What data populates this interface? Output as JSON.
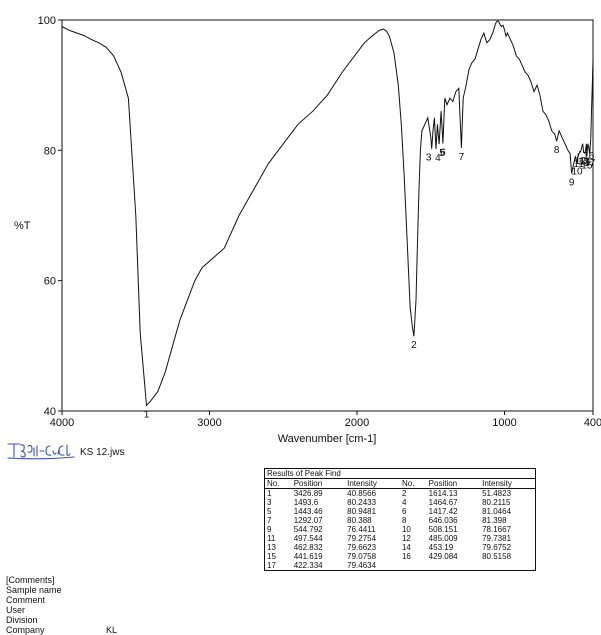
{
  "chart_data": {
    "type": "line",
    "xlabel": "Wavenumber [cm-1]",
    "ylabel": "%T",
    "xlim": [
      4000,
      400
    ],
    "ylim": [
      40,
      100
    ],
    "x_ticks": [
      4000,
      3000,
      2000,
      1000,
      400
    ],
    "y_ticks": [
      40,
      60,
      80,
      100
    ],
    "grid": false,
    "series": [
      {
        "x": [
          4000,
          3950,
          3900,
          3850,
          3800,
          3750,
          3700,
          3650,
          3600,
          3550,
          3500,
          3470,
          3426.89,
          3400,
          3350,
          3300,
          3250,
          3200,
          3150,
          3100,
          3050,
          3000,
          2950,
          2900,
          2800,
          2700,
          2600,
          2500,
          2400,
          2300,
          2200,
          2100,
          2000,
          1950,
          1900,
          1850,
          1820,
          1800,
          1780,
          1750,
          1720,
          1700,
          1680,
          1660,
          1640,
          1625,
          1614.13,
          1600,
          1590,
          1580,
          1570,
          1560,
          1540,
          1520,
          1500,
          1493.6,
          1485,
          1475,
          1464.67,
          1455,
          1443.46,
          1430,
          1417.42,
          1405,
          1390,
          1370,
          1350,
          1330,
          1310,
          1292.07,
          1280,
          1260,
          1240,
          1220,
          1200,
          1180,
          1160,
          1140,
          1120,
          1100,
          1080,
          1060,
          1050,
          1040,
          1030,
          1020,
          1010,
          1000,
          990,
          980,
          970,
          960,
          950,
          940,
          920,
          900,
          880,
          860,
          840,
          820,
          800,
          780,
          760,
          740,
          720,
          700,
          680,
          660,
          646.036,
          630,
          610,
          590,
          570,
          555,
          544.792,
          530,
          520,
          508.151,
          500,
          497.544,
          490,
          485.009,
          470,
          462.832,
          453.19,
          445,
          441.619,
          435,
          429.084,
          422.334,
          415,
          410,
          405,
          400
        ],
        "y": [
          99,
          98.4,
          98,
          97.6,
          97,
          96.5,
          95.8,
          94.5,
          92,
          88,
          70,
          52,
          40.86,
          41.5,
          43,
          46,
          50,
          54,
          57,
          60,
          62,
          63,
          64,
          65,
          70,
          74,
          78,
          81,
          84,
          86,
          88.5,
          92,
          95,
          96.5,
          97.5,
          98.4,
          98.6,
          98.3,
          97.5,
          95,
          90,
          84,
          76,
          66,
          56,
          53,
          51.48,
          57,
          66,
          74,
          80,
          83,
          84,
          85,
          82,
          80.24,
          83,
          85,
          80.21,
          84,
          80.95,
          86,
          81.05,
          88,
          87,
          88,
          87.5,
          89,
          89.5,
          80.39,
          88,
          90,
          92.5,
          93.5,
          94,
          95.5,
          97,
          98,
          96.5,
          97,
          98,
          99.5,
          99.8,
          99.8,
          99.3,
          99,
          99.2,
          98.5,
          97.5,
          98,
          97.5,
          97,
          96.5,
          96,
          94.5,
          94,
          93,
          92,
          91.5,
          90.5,
          89,
          90,
          88.5,
          86,
          85.5,
          84.5,
          83,
          82.5,
          81.4,
          83,
          82,
          81,
          80,
          79.5,
          76.44,
          78,
          79,
          78.17,
          79.5,
          79.28,
          79.8,
          79.74,
          81,
          79.66,
          79.68,
          81,
          79.08,
          81,
          80.52,
          79.46,
          82,
          86,
          90,
          94
        ]
      }
    ],
    "peaks": [
      {
        "n": "1",
        "x": 3426.89,
        "y": 40.8566
      },
      {
        "n": "2",
        "x": 1614.13,
        "y": 51.4823
      },
      {
        "n": "3",
        "x": 1493.6,
        "y": 80.2433
      },
      {
        "n": "4",
        "x": 1464.67,
        "y": 80.2115
      },
      {
        "n": "5",
        "x": 1443.46,
        "y": 80.9481
      },
      {
        "n": "6",
        "x": 1417.42,
        "y": 81.0464
      },
      {
        "n": "7",
        "x": 1292.07,
        "y": 80.388
      },
      {
        "n": "8",
        "x": 646.036,
        "y": 81.398
      },
      {
        "n": "9",
        "x": 544.792,
        "y": 76.4411
      },
      {
        "n": "10",
        "x": 508.151,
        "y": 78.1667
      },
      {
        "n": "11",
        "x": 497.544,
        "y": 79.2754
      },
      {
        "n": "12",
        "x": 485.009,
        "y": 79.7381
      },
      {
        "n": "13",
        "x": 462.832,
        "y": 79.6623
      },
      {
        "n": "14",
        "x": 453.19,
        "y": 79.6752
      },
      {
        "n": "15",
        "x": 441.619,
        "y": 79.0758
      },
      {
        "n": "16",
        "x": 429.084,
        "y": 80.5158
      },
      {
        "n": "17",
        "x": 422.334,
        "y": 79.4634
      }
    ]
  },
  "file_name": "KS 12.jws",
  "signature_text": "TB311-Cu-Cl2",
  "peak_table": {
    "title": "Results of Peak Find",
    "headers": [
      "No.",
      "Position",
      "Intensity",
      "No.",
      "Position",
      "Intensity"
    ],
    "rows": [
      [
        "1",
        "3426.89",
        "40.8566",
        "2",
        "1614.13",
        "51.4823"
      ],
      [
        "3",
        "1493.6",
        "80.2433",
        "4",
        "1464.67",
        "80.2115"
      ],
      [
        "5",
        "1443.46",
        "80.9481",
        "6",
        "1417.42",
        "81.0464"
      ],
      [
        "7",
        "1292.07",
        "80.388",
        "8",
        "646.036",
        "81.398"
      ],
      [
        "9",
        "544.792",
        "76.4411",
        "10",
        "508.151",
        "78.1667"
      ],
      [
        "11",
        "497.544",
        "79.2754",
        "12",
        "485.009",
        "79.7381"
      ],
      [
        "13",
        "462.832",
        "79.6623",
        "14",
        "453.19",
        "79.6752"
      ],
      [
        "15",
        "441.619",
        "79.0758",
        "16",
        "429.084",
        "80.5158"
      ],
      [
        "17",
        "422.334",
        "79.4634",
        "",
        "",
        ""
      ]
    ]
  },
  "info": [
    {
      "key": "[Comments]",
      "value": ""
    },
    {
      "key": "Sample name",
      "value": ""
    },
    {
      "key": "Comment",
      "value": ""
    },
    {
      "key": "User",
      "value": ""
    },
    {
      "key": "Division",
      "value": ""
    },
    {
      "key": "Company",
      "value": "KL"
    }
  ]
}
